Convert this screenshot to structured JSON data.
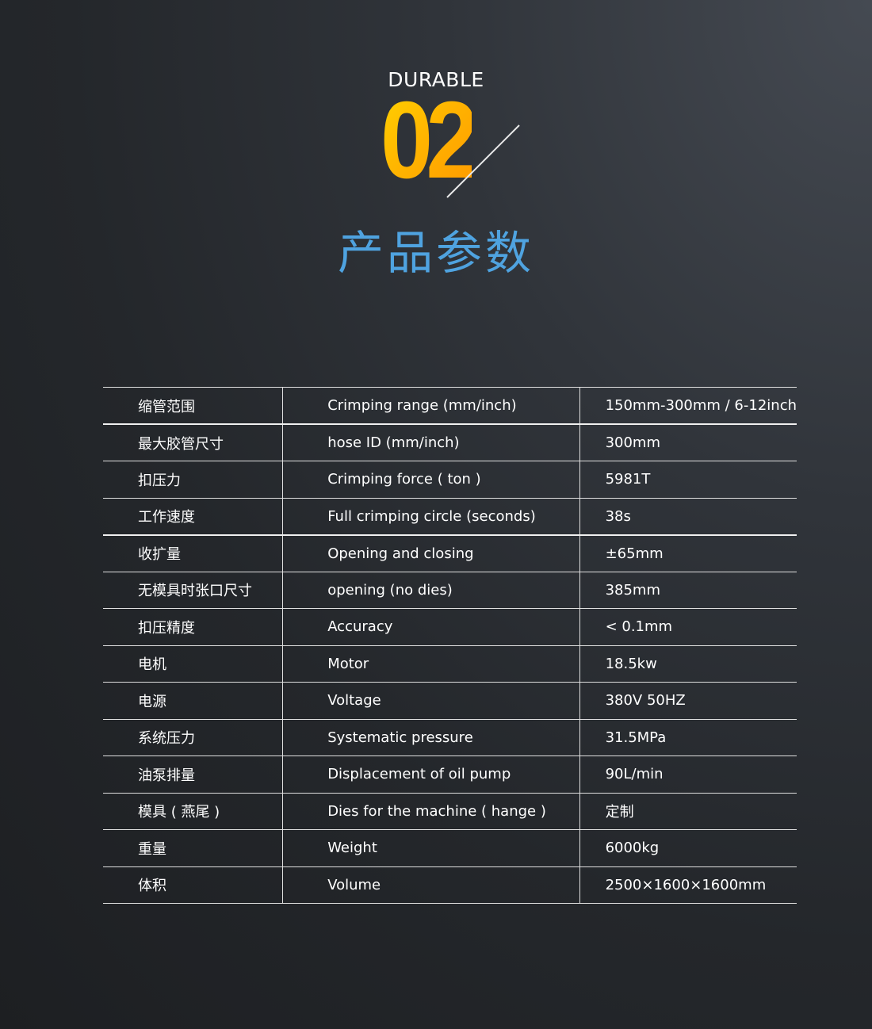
{
  "header": {
    "label": "DURABLE",
    "number": "02",
    "title": "产品参数"
  },
  "colors": {
    "accent_number": "#ffb300",
    "title": "#4fa3e0"
  },
  "specs": [
    {
      "cn": "缩管范围",
      "en": "Crimping range (mm/inch)",
      "value": "150mm-300mm / 6-12inch"
    },
    {
      "cn": "最大胶管尺寸",
      "en": "hose ID (mm/inch)",
      "value": "300mm"
    },
    {
      "cn": "扣压力",
      "en": "Crimping force ( ton )",
      "value": "5981T"
    },
    {
      "cn": "工作速度",
      "en": "Full crimping circle (seconds)",
      "value": "38s"
    },
    {
      "cn": "收扩量",
      "en": "Opening and closing",
      "value": "±65mm"
    },
    {
      "cn": "无模具时张口尺寸",
      "en": "opening (no dies)",
      "value": "385mm"
    },
    {
      "cn": "扣压精度",
      "en": "Accuracy",
      "value": "< 0.1mm"
    },
    {
      "cn": "电机",
      "en": "Motor",
      "value": "18.5kw"
    },
    {
      "cn": "电源",
      "en": "Voltage",
      "value": "380V  50HZ"
    },
    {
      "cn": "系统压力",
      "en": "Systematic pressure",
      "value": "31.5MPa"
    },
    {
      "cn": "油泵排量",
      "en": "Displacement of oil pump",
      "value": "90L/min"
    },
    {
      "cn": "模具 ( 燕尾 )",
      "en": "Dies for the machine ( hange )",
      "value": "定制"
    },
    {
      "cn": "重量",
      "en": "Weight",
      "value": "6000kg"
    },
    {
      "cn": "体积",
      "en": "Volume",
      "value": "2500×1600×1600mm"
    }
  ]
}
